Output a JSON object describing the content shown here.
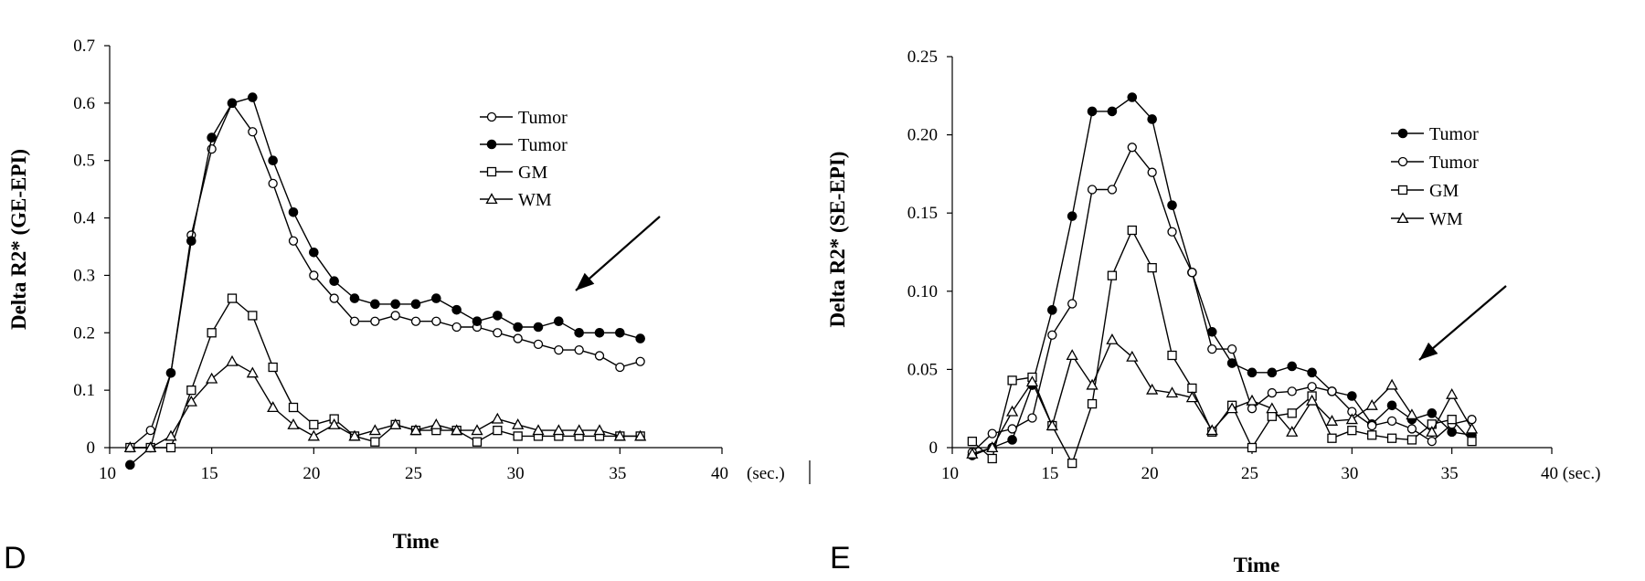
{
  "chart_data": [
    {
      "panel_label": "D",
      "type": "line",
      "xlabel": "Time",
      "x_unit": "(sec.)",
      "ylabel": "Delta R2* (GE-EPI)",
      "xlim": [
        10,
        40
      ],
      "ylim": [
        0,
        0.7
      ],
      "x_ticks": [
        "10",
        "15",
        "20",
        "25",
        "30",
        "35",
        "40"
      ],
      "y_ticks": [
        "0",
        "0.1",
        "0.2",
        "0.3",
        "0.4",
        "0.5",
        "0.6",
        "0.7"
      ],
      "x": [
        11,
        12,
        13,
        14,
        15,
        16,
        17,
        18,
        19,
        20,
        21,
        22,
        23,
        24,
        25,
        26,
        27,
        28,
        29,
        30,
        31,
        32,
        33,
        34,
        35,
        36
      ],
      "legend": [
        "Tumor",
        "Tumor",
        "GM",
        "WM"
      ],
      "series": [
        {
          "name": "Tumor",
          "marker": "open-circle",
          "values": [
            0.0,
            0.03,
            0.13,
            0.37,
            0.52,
            0.6,
            0.55,
            0.46,
            0.36,
            0.3,
            0.26,
            0.22,
            0.22,
            0.23,
            0.22,
            0.22,
            0.21,
            0.21,
            0.2,
            0.19,
            0.18,
            0.17,
            0.17,
            0.16,
            0.14,
            0.15
          ]
        },
        {
          "name": "Tumor",
          "marker": "filled-circle",
          "values": [
            -0.03,
            0.0,
            0.13,
            0.36,
            0.54,
            0.6,
            0.61,
            0.5,
            0.41,
            0.34,
            0.29,
            0.26,
            0.25,
            0.25,
            0.25,
            0.26,
            0.24,
            0.22,
            0.23,
            0.21,
            0.21,
            0.22,
            0.2,
            0.2,
            0.2,
            0.19
          ]
        },
        {
          "name": "GM",
          "marker": "open-square",
          "values": [
            0.0,
            0.0,
            0.0,
            0.1,
            0.2,
            0.26,
            0.23,
            0.14,
            0.07,
            0.04,
            0.05,
            0.02,
            0.01,
            0.04,
            0.03,
            0.03,
            0.03,
            0.01,
            0.03,
            0.02,
            0.02,
            0.02,
            0.02,
            0.02,
            0.02,
            0.02
          ]
        },
        {
          "name": "WM",
          "marker": "open-triangle",
          "values": [
            0.0,
            0.0,
            0.02,
            0.08,
            0.12,
            0.15,
            0.13,
            0.07,
            0.04,
            0.02,
            0.04,
            0.02,
            0.03,
            0.04,
            0.03,
            0.04,
            0.03,
            0.03,
            0.05,
            0.04,
            0.03,
            0.03,
            0.03,
            0.03,
            0.02,
            0.02
          ]
        }
      ],
      "annotation": "arrow"
    },
    {
      "panel_label": "E",
      "type": "line",
      "xlabel": "Time",
      "x_unit": "(sec.)",
      "ylabel": "Delta R2* (SE-EPI)",
      "xlim": [
        10,
        40
      ],
      "ylim": [
        0,
        0.25
      ],
      "x_ticks": [
        "10",
        "15",
        "20",
        "25",
        "30",
        "35",
        "40 (sec.)"
      ],
      "y_ticks": [
        "0",
        "0.05",
        "0.10",
        "0.15",
        "0.20",
        "0.25"
      ],
      "x": [
        11,
        12,
        13,
        14,
        15,
        16,
        17,
        18,
        19,
        20,
        21,
        22,
        23,
        24,
        25,
        26,
        27,
        28,
        29,
        30,
        31,
        32,
        33,
        34,
        35,
        36
      ],
      "legend": [
        "Tumor",
        "Tumor",
        "GM",
        "WM"
      ],
      "series": [
        {
          "name": "Tumor",
          "marker": "filled-circle",
          "values": [
            -0.005,
            0.0,
            0.005,
            0.04,
            0.088,
            0.148,
            0.215,
            0.215,
            0.224,
            0.21,
            0.155,
            0.112,
            0.074,
            0.054,
            0.048,
            0.048,
            0.052,
            0.048,
            0.036,
            0.033,
            0.015,
            0.027,
            0.018,
            0.022,
            0.01,
            0.008
          ]
        },
        {
          "name": "Tumor",
          "marker": "open-circle",
          "values": [
            -0.003,
            0.009,
            0.012,
            0.019,
            0.072,
            0.092,
            0.165,
            0.165,
            0.192,
            0.176,
            0.138,
            0.112,
            0.063,
            0.063,
            0.025,
            0.035,
            0.036,
            0.039,
            0.036,
            0.023,
            0.014,
            0.017,
            0.012,
            0.004,
            0.015,
            0.018
          ]
        },
        {
          "name": "GM",
          "marker": "open-square",
          "values": [
            0.004,
            -0.007,
            0.043,
            0.045,
            0.014,
            -0.01,
            0.028,
            0.11,
            0.139,
            0.115,
            0.059,
            0.038,
            0.01,
            0.027,
            0.0,
            0.02,
            0.022,
            0.033,
            0.006,
            0.011,
            0.008,
            0.006,
            0.005,
            0.015,
            0.018,
            0.004
          ]
        },
        {
          "name": "WM",
          "marker": "open-triangle",
          "values": [
            -0.004,
            0.0,
            0.023,
            0.042,
            0.014,
            0.059,
            0.04,
            0.069,
            0.058,
            0.037,
            0.035,
            0.032,
            0.011,
            0.025,
            0.03,
            0.025,
            0.01,
            0.03,
            0.017,
            0.018,
            0.027,
            0.04,
            0.021,
            0.01,
            0.034,
            0.012
          ]
        }
      ],
      "annotation": "arrow"
    }
  ]
}
